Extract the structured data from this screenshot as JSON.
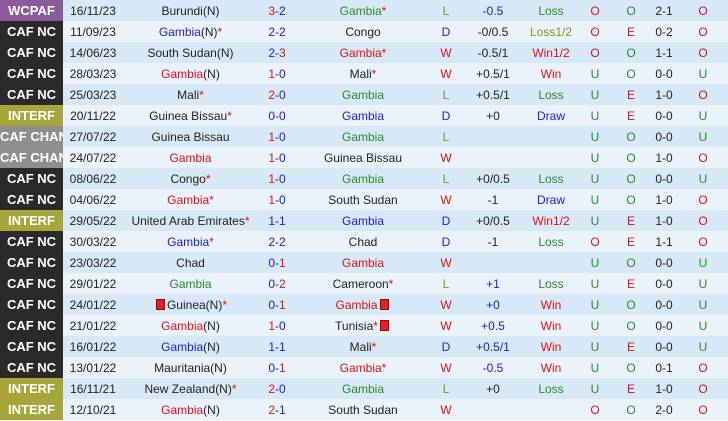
{
  "colors": {
    "WCPAF": "#8b5a9c",
    "CAF NC": "#2a2a2a",
    "INTERF": "#a8a63a",
    "CAF CHAN": "#8e8e8e"
  },
  "rows": [
    {
      "comp": "WCPAF",
      "date": "16/11/23",
      "home": {
        "name": "Burundi",
        "n": "(N)",
        "c": "k"
      },
      "hs": "3",
      "as": "2",
      "hsc": "r",
      "asc": "b",
      "away": {
        "name": "Gambia",
        "star": "*",
        "c": "g"
      },
      "res": "L",
      "hc": "-0.5",
      "hcc": "b",
      "hres": "Loss",
      "ou": "O",
      "oe": "O",
      "ht": "2-1",
      "last": "O"
    },
    {
      "comp": "CAF NC",
      "date": "11/09/23",
      "home": {
        "name": "Gambia",
        "n": "(N)",
        "star": "*",
        "c": "b"
      },
      "hs": "2",
      "as": "2",
      "hsc": "b",
      "asc": "b",
      "away": {
        "name": "Congo",
        "c": "k"
      },
      "res": "D",
      "hc": "-0/0.5",
      "hres": "Loss1/2",
      "ou": "O",
      "oe": "E",
      "ht": "0-2",
      "last": "O"
    },
    {
      "comp": "CAF NC",
      "date": "14/06/23",
      "home": {
        "name": "South Sudan",
        "n": "(N)",
        "c": "k"
      },
      "hs": "2",
      "as": "3",
      "hsc": "b",
      "asc": "r",
      "away": {
        "name": "Gambia",
        "star": "*",
        "c": "r"
      },
      "res": "W",
      "hc": "-0.5/1",
      "hres": "Win1/2",
      "ou": "O",
      "oe": "O",
      "ht": "1-1",
      "last": "O"
    },
    {
      "comp": "CAF NC",
      "date": "28/03/23",
      "home": {
        "name": "Gambia",
        "n": "(N)",
        "c": "r"
      },
      "hs": "1",
      "as": "0",
      "hsc": "r",
      "asc": "b",
      "away": {
        "name": "Mali",
        "star": "*",
        "c": "k"
      },
      "res": "W",
      "hc": "+0.5/1",
      "hres": "Win",
      "ou": "U",
      "oe": "O",
      "ht": "0-0",
      "last": "U"
    },
    {
      "comp": "CAF NC",
      "date": "25/03/23",
      "home": {
        "name": "Mali",
        "star": "*",
        "c": "k"
      },
      "hs": "2",
      "as": "0",
      "hsc": "r",
      "asc": "b",
      "away": {
        "name": "Gambia",
        "c": "g"
      },
      "res": "L",
      "hc": "+0.5/1",
      "hres": "Loss",
      "ou": "U",
      "oe": "E",
      "ht": "1-0",
      "last": "O"
    },
    {
      "comp": "INTERF",
      "date": "20/11/22",
      "home": {
        "name": "Guinea Bissau",
        "star": "*",
        "c": "k"
      },
      "hs": "0",
      "as": "0",
      "hsc": "b",
      "asc": "b",
      "away": {
        "name": "Gambia",
        "c": "b"
      },
      "res": "D",
      "hc": "+0",
      "hres": "Draw",
      "ou": "U",
      "oe": "E",
      "ht": "0-0",
      "last": "U"
    },
    {
      "comp": "CAF CHAN",
      "date": "27/07/22",
      "home": {
        "name": "Guinea Bissau",
        "c": "k"
      },
      "hs": "1",
      "as": "0",
      "hsc": "r",
      "asc": "b",
      "away": {
        "name": "Gambia",
        "c": "g"
      },
      "res": "L",
      "hc": "",
      "hres": "",
      "ou": "U",
      "oe": "O",
      "ht": "0-0",
      "last": "U"
    },
    {
      "comp": "CAF CHAN",
      "date": "24/07/22",
      "home": {
        "name": "Gambia",
        "c": "r"
      },
      "hs": "1",
      "as": "0",
      "hsc": "r",
      "asc": "b",
      "away": {
        "name": "Guinea Bissau",
        "c": "k"
      },
      "res": "W",
      "hc": "",
      "hres": "",
      "ou": "U",
      "oe": "O",
      "ht": "1-0",
      "last": "O"
    },
    {
      "comp": "CAF NC",
      "date": "08/06/22",
      "home": {
        "name": "Congo",
        "star": "*",
        "c": "k"
      },
      "hs": "1",
      "as": "0",
      "hsc": "r",
      "asc": "b",
      "away": {
        "name": "Gambia",
        "c": "g"
      },
      "res": "L",
      "hc": "+0/0.5",
      "hres": "Loss",
      "ou": "U",
      "oe": "O",
      "ht": "0-0",
      "last": "U"
    },
    {
      "comp": "CAF NC",
      "date": "04/06/22",
      "home": {
        "name": "Gambia",
        "star": "*",
        "c": "r"
      },
      "hs": "1",
      "as": "0",
      "hsc": "r",
      "asc": "b",
      "away": {
        "name": "South Sudan",
        "c": "k"
      },
      "res": "W",
      "hc": "-1",
      "hres": "Draw",
      "ou": "U",
      "oe": "O",
      "ht": "1-0",
      "last": "O"
    },
    {
      "comp": "INTERF",
      "date": "29/05/22",
      "home": {
        "name": "United Arab Emirates",
        "star": "*",
        "c": "k"
      },
      "hs": "1",
      "as": "1",
      "hsc": "b",
      "asc": "b",
      "away": {
        "name": "Gambia",
        "c": "b"
      },
      "res": "D",
      "hc": "+0/0.5",
      "hres": "Win1/2",
      "ou": "U",
      "oe": "E",
      "ht": "1-0",
      "last": "O"
    },
    {
      "comp": "CAF NC",
      "date": "30/03/22",
      "home": {
        "name": "Gambia",
        "star": "*",
        "c": "b"
      },
      "hs": "2",
      "as": "2",
      "hsc": "b",
      "asc": "b",
      "away": {
        "name": "Chad",
        "c": "k"
      },
      "res": "D",
      "hc": "-1",
      "hres": "Loss",
      "ou": "O",
      "oe": "E",
      "ht": "1-1",
      "last": "O"
    },
    {
      "comp": "CAF NC",
      "date": "23/03/22",
      "home": {
        "name": "Chad",
        "c": "k"
      },
      "hs": "0",
      "as": "1",
      "hsc": "b",
      "asc": "r",
      "away": {
        "name": "Gambia",
        "c": "r"
      },
      "res": "W",
      "hc": "",
      "hres": "",
      "ou": "U",
      "oe": "O",
      "ht": "0-0",
      "last": "U"
    },
    {
      "comp": "CAF NC",
      "date": "29/01/22",
      "home": {
        "name": "Gambia",
        "c": "g"
      },
      "hs": "0",
      "as": "2",
      "hsc": "b",
      "asc": "r",
      "away": {
        "name": "Cameroon",
        "star": "*",
        "c": "k"
      },
      "res": "L",
      "hc": "+1",
      "hcc": "b",
      "hres": "Loss",
      "ou": "U",
      "oe": "E",
      "ht": "0-0",
      "last": "U"
    },
    {
      "comp": "CAF NC",
      "date": "24/01/22",
      "home": {
        "name": "Guinea",
        "n": "(N)",
        "star": "*",
        "c": "k",
        "cardL": true
      },
      "hs": "0",
      "as": "1",
      "hsc": "b",
      "asc": "r",
      "away": {
        "name": "Gambia",
        "c": "r",
        "card": true
      },
      "res": "W",
      "hc": "+0",
      "hcc": "b",
      "hres": "Win",
      "ou": "U",
      "oe": "O",
      "ht": "0-0",
      "last": "U"
    },
    {
      "comp": "CAF NC",
      "date": "21/01/22",
      "home": {
        "name": "Gambia",
        "n": "(N)",
        "c": "r"
      },
      "hs": "1",
      "as": "0",
      "hsc": "r",
      "asc": "b",
      "away": {
        "name": "Tunisia",
        "star": "*",
        "c": "k",
        "card": true
      },
      "res": "W",
      "hc": "+0.5",
      "hcc": "b",
      "hres": "Win",
      "ou": "U",
      "oe": "O",
      "ht": "0-0",
      "last": "U"
    },
    {
      "comp": "CAF NC",
      "date": "16/01/22",
      "home": {
        "name": "Gambia",
        "n": "(N)",
        "c": "b"
      },
      "hs": "1",
      "as": "1",
      "hsc": "b",
      "asc": "b",
      "away": {
        "name": "Mali",
        "star": "*",
        "c": "k"
      },
      "res": "D",
      "hc": "+0.5/1",
      "hcc": "b",
      "hres": "Win",
      "ou": "U",
      "oe": "E",
      "ht": "0-0",
      "last": "U"
    },
    {
      "comp": "CAF NC",
      "date": "13/01/22",
      "home": {
        "name": "Mauritania",
        "n": "(N)",
        "c": "k"
      },
      "hs": "0",
      "as": "1",
      "hsc": "b",
      "asc": "r",
      "away": {
        "name": "Gambia",
        "star": "*",
        "c": "r"
      },
      "res": "W",
      "hc": "-0.5",
      "hcc": "b",
      "hres": "Win",
      "ou": "U",
      "oe": "O",
      "ht": "0-1",
      "last": "O"
    },
    {
      "comp": "INTERF",
      "date": "16/11/21",
      "home": {
        "name": "New Zealand",
        "n": "(N)",
        "star": "*",
        "c": "k"
      },
      "hs": "2",
      "as": "0",
      "hsc": "r",
      "asc": "b",
      "away": {
        "name": "Gambia",
        "c": "g"
      },
      "res": "L",
      "hc": "+0",
      "hres": "Loss",
      "ou": "U",
      "oe": "E",
      "ht": "1-0",
      "last": "O"
    },
    {
      "comp": "INTERF",
      "date": "12/10/21",
      "home": {
        "name": "Gambia",
        "n": "(N)",
        "c": "r"
      },
      "hs": "2",
      "as": "1",
      "hsc": "r",
      "asc": "b",
      "away": {
        "name": "South Sudan",
        "c": "k"
      },
      "res": "W",
      "hc": "",
      "hres": "",
      "ou": "O",
      "oe": "O",
      "ht": "2-0",
      "last": "O"
    }
  ]
}
